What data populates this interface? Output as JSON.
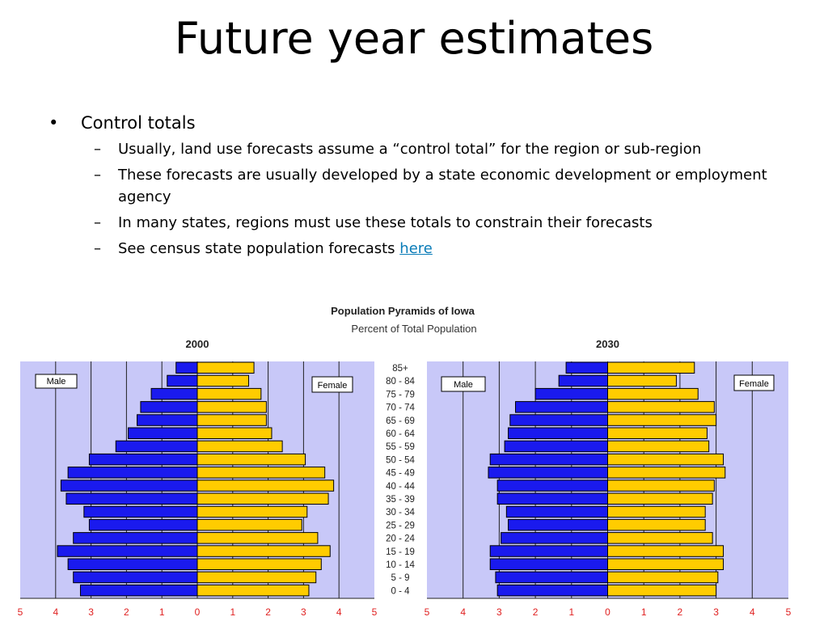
{
  "slide": {
    "title": "Future year estimates",
    "bullet": "Control totals",
    "bullet_marker": "•",
    "sub_marker": "–",
    "subbullets": [
      "Usually, land use forecasts assume a “control total” for the region or sub-region",
      "These forecasts are usually developed by a state economic development or employment agency",
      "In many states, regions must use these totals to constrain their forecasts"
    ],
    "last_subbullet": {
      "prefix": "See census state population forecasts ",
      "link_text": "here"
    }
  },
  "figure": {
    "title": "Population Pyramids of Iowa",
    "subtitle": "Percent of Total Population",
    "male_label": "Male",
    "female_label": "Female",
    "colors": {
      "male": "#1a1aee",
      "female": "#ffcc00",
      "plot_bg": "#c8c8f8",
      "axis_label": "#e02020"
    }
  },
  "chart_data": [
    {
      "type": "bar",
      "title": "2000",
      "orientation": "horizontal-pyramid",
      "categories": [
        "85+",
        "80 - 84",
        "75 - 79",
        "70 - 74",
        "65 - 69",
        "60 - 64",
        "55 - 59",
        "50 - 54",
        "45 - 49",
        "40 - 44",
        "35 - 39",
        "30 - 34",
        "25 - 29",
        "20 - 24",
        "15 - 19",
        "10 - 14",
        "5 - 9",
        "0 - 4"
      ],
      "series": [
        {
          "name": "Male",
          "values": [
            0.6,
            0.85,
            1.3,
            1.6,
            1.7,
            1.95,
            2.3,
            3.05,
            3.65,
            3.85,
            3.7,
            3.2,
            3.05,
            3.5,
            3.95,
            3.65,
            3.5,
            3.3
          ]
        },
        {
          "name": "Female",
          "values": [
            1.6,
            1.45,
            1.8,
            1.95,
            1.95,
            2.1,
            2.4,
            3.05,
            3.6,
            3.85,
            3.7,
            3.1,
            2.95,
            3.4,
            3.75,
            3.5,
            3.35,
            3.15
          ]
        }
      ],
      "xticks": [
        "5",
        "4",
        "3",
        "2",
        "1",
        "0",
        "1",
        "2",
        "3",
        "4",
        "5"
      ],
      "xlim": [
        -5,
        5
      ],
      "grid": true
    },
    {
      "type": "bar",
      "title": "2030",
      "orientation": "horizontal-pyramid",
      "categories": [
        "85+",
        "80 - 84",
        "75 - 79",
        "70 - 74",
        "65 - 69",
        "60 - 64",
        "55 - 59",
        "50 - 54",
        "45 - 49",
        "40 - 44",
        "35 - 39",
        "30 - 34",
        "25 - 29",
        "20 - 24",
        "15 - 19",
        "10 - 14",
        "5 - 9",
        "0 - 4"
      ],
      "series": [
        {
          "name": "Male",
          "values": [
            1.15,
            1.35,
            2.0,
            2.55,
            2.7,
            2.75,
            2.85,
            3.25,
            3.3,
            3.05,
            3.05,
            2.8,
            2.75,
            2.95,
            3.25,
            3.25,
            3.1,
            3.05
          ]
        },
        {
          "name": "Female",
          "values": [
            2.4,
            1.9,
            2.5,
            2.95,
            3.0,
            2.75,
            2.8,
            3.2,
            3.25,
            2.95,
            2.9,
            2.7,
            2.7,
            2.9,
            3.2,
            3.2,
            3.05,
            3.0
          ]
        }
      ],
      "xticks": [
        "5",
        "4",
        "3",
        "2",
        "1",
        "0",
        "1",
        "2",
        "3",
        "4",
        "5"
      ],
      "xlim": [
        -5,
        5
      ],
      "grid": true
    }
  ]
}
